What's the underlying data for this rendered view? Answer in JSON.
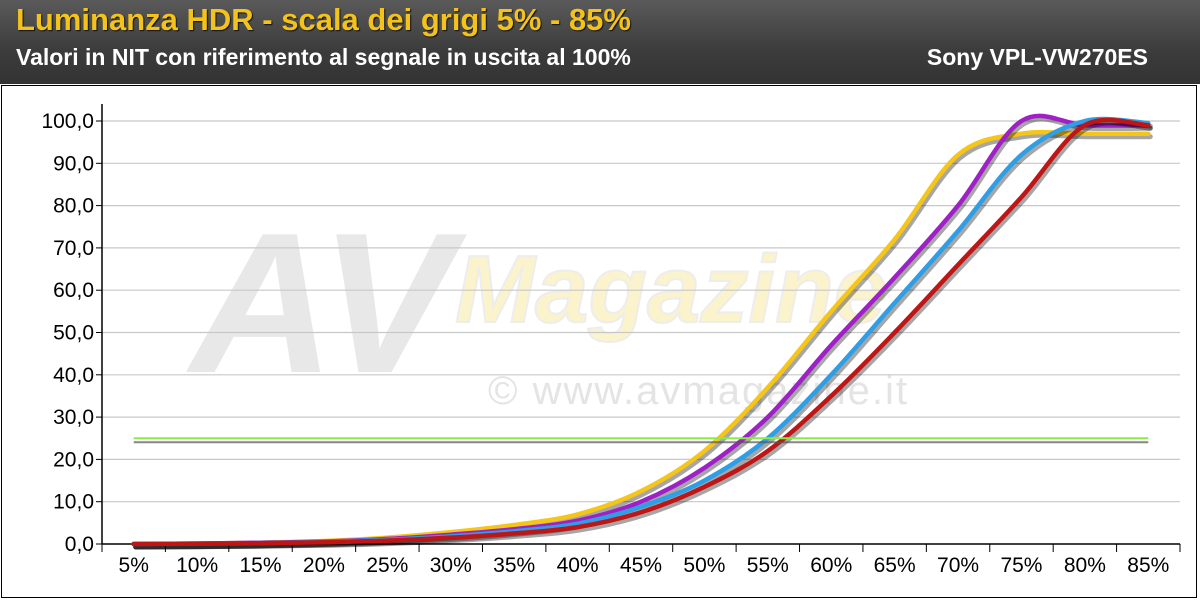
{
  "header": {
    "title": "Luminanza HDR - scala dei grigi 5% - 85%",
    "subtitle": "Valori in NIT con riferimento al segnale in uscita al 100%",
    "model": "Sony VPL-VW270ES"
  },
  "watermark": {
    "brand_av": "AV",
    "brand_magazine": "Magazine",
    "url": "© www.avmagazine.it"
  },
  "chart_data": {
    "type": "line",
    "title": "Luminanza HDR - scala dei grigi 5% - 85%",
    "subtitle": "Valori in NIT con riferimento al segnale in uscita al 100%",
    "xlabel": "",
    "ylabel": "",
    "categories": [
      "5%",
      "10%",
      "15%",
      "20%",
      "25%",
      "30%",
      "35%",
      "40%",
      "45%",
      "50%",
      "55%",
      "60%",
      "65%",
      "70%",
      "75%",
      "80%",
      "85%"
    ],
    "y_tick_labels": [
      "0,0",
      "10,0",
      "20,0",
      "30,0",
      "40,0",
      "50,0",
      "60,0",
      "70,0",
      "80,0",
      "90,0",
      "100,0"
    ],
    "ylim": [
      0,
      100
    ],
    "grid": true,
    "series": [
      {
        "color": "#f5c518",
        "values": [
          0.0,
          0.1,
          0.3,
          0.7,
          1.5,
          2.8,
          4.5,
          7.0,
          12.5,
          22.0,
          37.0,
          55.0,
          72.0,
          92.0,
          97.0,
          97.0,
          97.0
        ]
      },
      {
        "color": "#a020c8",
        "values": [
          0.0,
          0.1,
          0.3,
          0.6,
          1.2,
          2.2,
          3.5,
          5.5,
          10.0,
          18.0,
          30.0,
          47.0,
          63.0,
          80.0,
          100.0,
          99.0,
          99.0
        ]
      },
      {
        "color": "#2e9fe6",
        "values": [
          0.0,
          0.1,
          0.2,
          0.5,
          1.0,
          1.8,
          3.0,
          4.8,
          8.8,
          15.0,
          25.0,
          40.0,
          57.0,
          74.0,
          92.0,
          100.0,
          99.5
        ]
      },
      {
        "color": "#c01515",
        "values": [
          0.0,
          0.1,
          0.2,
          0.4,
          0.8,
          1.5,
          2.5,
          4.0,
          7.5,
          13.5,
          22.0,
          35.0,
          50.0,
          66.0,
          82.0,
          99.0,
          99.0
        ]
      },
      {
        "color": "#88ee44",
        "values": [
          25.0,
          25.0,
          25.0,
          25.0,
          25.0,
          25.0,
          25.0,
          25.0,
          25.0,
          25.0,
          25.0,
          25.0,
          25.0,
          25.0,
          25.0,
          25.0,
          25.0
        ]
      }
    ]
  }
}
